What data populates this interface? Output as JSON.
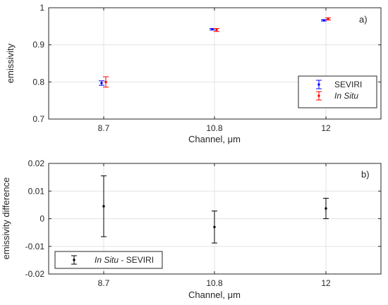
{
  "chart_data": [
    {
      "type": "scatter",
      "panel_label": "a)",
      "xlabel": "Channel,  μm",
      "ylabel": "emissivity",
      "categories": [
        "8.7",
        "10.8",
        "12"
      ],
      "ylim": [
        0.7,
        1.0
      ],
      "yticks": [
        "0.7",
        "0.8",
        "0.9",
        "1"
      ],
      "grid": true,
      "legend_position": "bottom-right",
      "series": [
        {
          "name": "SEVIRI",
          "color": "#0000ff",
          "values": [
            0.797,
            0.942,
            0.966
          ],
          "errors": [
            0.006,
            0.002,
            0.002
          ]
        },
        {
          "name": "In Situ",
          "color": "#ff0000",
          "values": [
            0.8,
            0.94,
            0.97
          ],
          "errors": [
            0.014,
            0.004,
            0.003
          ]
        }
      ]
    },
    {
      "type": "scatter",
      "panel_label": "b)",
      "xlabel": "Channel,  μm",
      "ylabel": "emissivity difference",
      "categories": [
        "8.7",
        "10.8",
        "12"
      ],
      "ylim": [
        -0.02,
        0.02
      ],
      "yticks": [
        "-0.02",
        "-0.01",
        "0",
        "0.01",
        "0.02"
      ],
      "grid": true,
      "legend_position": "bottom-left",
      "series": [
        {
          "name_italic": "In Situ",
          "name_rest": " - SEVIRI",
          "color": "#000000",
          "values": [
            0.0045,
            -0.003,
            0.0037
          ],
          "errors": [
            0.011,
            0.0058,
            0.0037
          ]
        }
      ]
    }
  ]
}
